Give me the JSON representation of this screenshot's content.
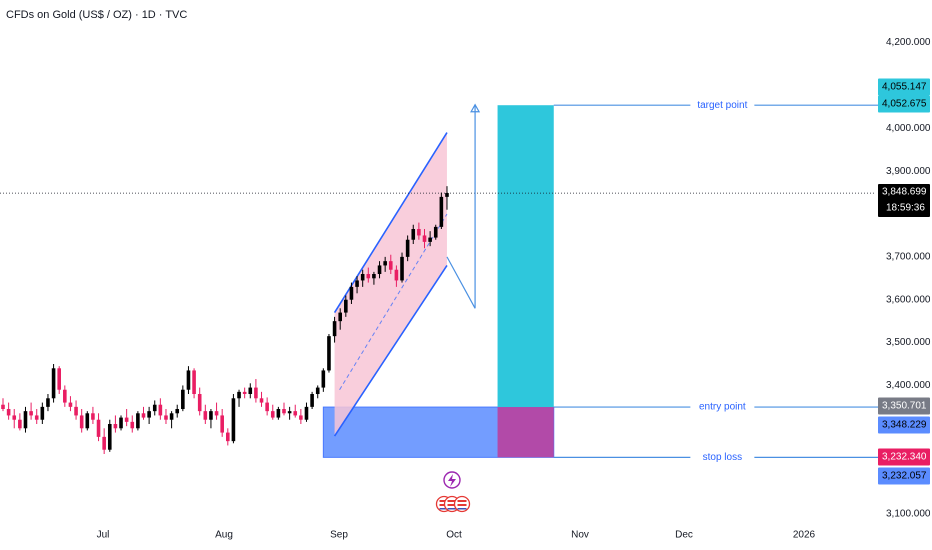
{
  "title": "CFDs on Gold (US$ / OZ) · 1D · TVC",
  "colors": {
    "up": "#000000",
    "down": "#e91e63",
    "wick_up": "#f5a623",
    "channel_fill": "#f8c6d6",
    "channel_line": "#2962ff",
    "target_zone": "#2ec7dc",
    "stop_zone": "#b24aa8",
    "entry_zone": "#5b8cff",
    "guide_line": "#4a90e2"
  },
  "chart_data": {
    "type": "candlestick",
    "ylim": [
      3050,
      4250
    ],
    "y_ticks": [
      "3,100.000",
      "3,400.000",
      "3,500.000",
      "3,600.000",
      "3,700.000",
      "3,900.000",
      "4,000.000",
      "4,200.000"
    ],
    "y_tick_values": [
      3100,
      3400,
      3500,
      3600,
      3700,
      3900,
      4000,
      4200
    ],
    "x_labels": [
      "Jul",
      "Aug",
      "Sep",
      "Oct",
      "Nov",
      "Dec",
      "2026"
    ],
    "current_price": {
      "price": "3,848.699",
      "countdown": "18:59:36",
      "value": 3848.7
    },
    "price_labels": [
      {
        "text": "4,055.147",
        "value": 4055.147,
        "color": "#2ec7dc",
        "text_color": "#000000"
      },
      {
        "text": "4,052.675",
        "value": 4052.675,
        "color": "#2ec7dc",
        "text_color": "#000000"
      },
      {
        "text": "3,350.701",
        "value": 3350.701,
        "color": "#787b86",
        "text_color": "#ffffff"
      },
      {
        "text": "3,348.229",
        "value": 3348.229,
        "color": "#5b8cff",
        "text_color": "#000000"
      },
      {
        "text": "3,232.340",
        "value": 3232.34,
        "color": "#e91e63",
        "text_color": "#ffffff"
      },
      {
        "text": "3,232.057",
        "value": 3232.057,
        "color": "#5b8cff",
        "text_color": "#000000"
      }
    ],
    "annotations": [
      {
        "text": "target point",
        "value": 4053
      },
      {
        "text": "entry point",
        "value": 3349
      },
      {
        "text": "stop loss",
        "value": 3232
      }
    ],
    "candles": [
      [
        3355,
        3370,
        3340,
        3345
      ],
      [
        3345,
        3360,
        3320,
        3330
      ],
      [
        3330,
        3345,
        3300,
        3320
      ],
      [
        3320,
        3335,
        3295,
        3300
      ],
      [
        3300,
        3350,
        3290,
        3340
      ],
      [
        3340,
        3360,
        3320,
        3330
      ],
      [
        3330,
        3345,
        3310,
        3320
      ],
      [
        3320,
        3360,
        3310,
        3350
      ],
      [
        3350,
        3380,
        3340,
        3370
      ],
      [
        3370,
        3450,
        3360,
        3440
      ],
      [
        3440,
        3445,
        3380,
        3390
      ],
      [
        3390,
        3400,
        3350,
        3360
      ],
      [
        3360,
        3375,
        3340,
        3350
      ],
      [
        3350,
        3365,
        3320,
        3330
      ],
      [
        3330,
        3345,
        3290,
        3300
      ],
      [
        3300,
        3340,
        3295,
        3335
      ],
      [
        3335,
        3350,
        3310,
        3320
      ],
      [
        3320,
        3335,
        3270,
        3280
      ],
      [
        3280,
        3300,
        3240,
        3250
      ],
      [
        3250,
        3320,
        3245,
        3310
      ],
      [
        3310,
        3330,
        3290,
        3300
      ],
      [
        3300,
        3330,
        3295,
        3325
      ],
      [
        3325,
        3345,
        3305,
        3315
      ],
      [
        3315,
        3330,
        3290,
        3300
      ],
      [
        3300,
        3340,
        3295,
        3335
      ],
      [
        3335,
        3350,
        3320,
        3325
      ],
      [
        3325,
        3350,
        3310,
        3340
      ],
      [
        3340,
        3365,
        3330,
        3355
      ],
      [
        3355,
        3370,
        3320,
        3330
      ],
      [
        3330,
        3345,
        3310,
        3320
      ],
      [
        3320,
        3340,
        3300,
        3335
      ],
      [
        3335,
        3355,
        3325,
        3345
      ],
      [
        3345,
        3400,
        3340,
        3390
      ],
      [
        3390,
        3445,
        3380,
        3435
      ],
      [
        3435,
        3440,
        3370,
        3380
      ],
      [
        3380,
        3395,
        3330,
        3340
      ],
      [
        3340,
        3355,
        3310,
        3320
      ],
      [
        3320,
        3345,
        3300,
        3340
      ],
      [
        3340,
        3360,
        3320,
        3330
      ],
      [
        3330,
        3345,
        3280,
        3290
      ],
      [
        3290,
        3300,
        3260,
        3270
      ],
      [
        3270,
        3380,
        3265,
        3370
      ],
      [
        3370,
        3390,
        3350,
        3385
      ],
      [
        3385,
        3395,
        3370,
        3380
      ],
      [
        3380,
        3405,
        3370,
        3395
      ],
      [
        3395,
        3415,
        3360,
        3370
      ],
      [
        3370,
        3385,
        3350,
        3360
      ],
      [
        3360,
        3372,
        3330,
        3340
      ],
      [
        3340,
        3355,
        3320,
        3325
      ],
      [
        3325,
        3350,
        3320,
        3345
      ],
      [
        3345,
        3360,
        3330,
        3335
      ],
      [
        3335,
        3350,
        3320,
        3340
      ],
      [
        3340,
        3355,
        3325,
        3330
      ],
      [
        3330,
        3345,
        3310,
        3320
      ],
      [
        3320,
        3360,
        3315,
        3350
      ],
      [
        3350,
        3385,
        3345,
        3380
      ],
      [
        3380,
        3400,
        3370,
        3395
      ],
      [
        3395,
        3440,
        3385,
        3435
      ],
      [
        3435,
        3520,
        3430,
        3515
      ],
      [
        3515,
        3560,
        3500,
        3550
      ],
      [
        3550,
        3580,
        3530,
        3570
      ],
      [
        3570,
        3610,
        3560,
        3600
      ],
      [
        3600,
        3640,
        3590,
        3630
      ],
      [
        3630,
        3655,
        3615,
        3645
      ],
      [
        3645,
        3670,
        3630,
        3660
      ],
      [
        3660,
        3675,
        3640,
        3650
      ],
      [
        3650,
        3665,
        3635,
        3660
      ],
      [
        3660,
        3690,
        3650,
        3680
      ],
      [
        3680,
        3700,
        3665,
        3690
      ],
      [
        3690,
        3705,
        3660,
        3670
      ],
      [
        3670,
        3680,
        3630,
        3645
      ],
      [
        3645,
        3710,
        3640,
        3700
      ],
      [
        3700,
        3750,
        3690,
        3740
      ],
      [
        3740,
        3775,
        3730,
        3765
      ],
      [
        3765,
        3780,
        3740,
        3750
      ],
      [
        3750,
        3765,
        3720,
        3735
      ],
      [
        3735,
        3760,
        3725,
        3745
      ],
      [
        3745,
        3775,
        3740,
        3770
      ],
      [
        3770,
        3850,
        3765,
        3840
      ],
      [
        3840,
        3865,
        3810,
        3849
      ]
    ],
    "channel": {
      "upper": [
        [
          59,
          3570
        ],
        [
          79,
          3990
        ]
      ],
      "lower": [
        [
          59,
          3282
        ],
        [
          79,
          3680
        ]
      ]
    },
    "trade": {
      "entry": 3349.5,
      "stop": 3232.2,
      "target": 4053.9,
      "start_index": 57,
      "zone_start_index": 88,
      "zone_end_index": 98,
      "line_end_index": 158
    },
    "projection": [
      [
        79,
        3700
      ],
      [
        84,
        3580
      ],
      [
        84,
        4055
      ]
    ]
  }
}
